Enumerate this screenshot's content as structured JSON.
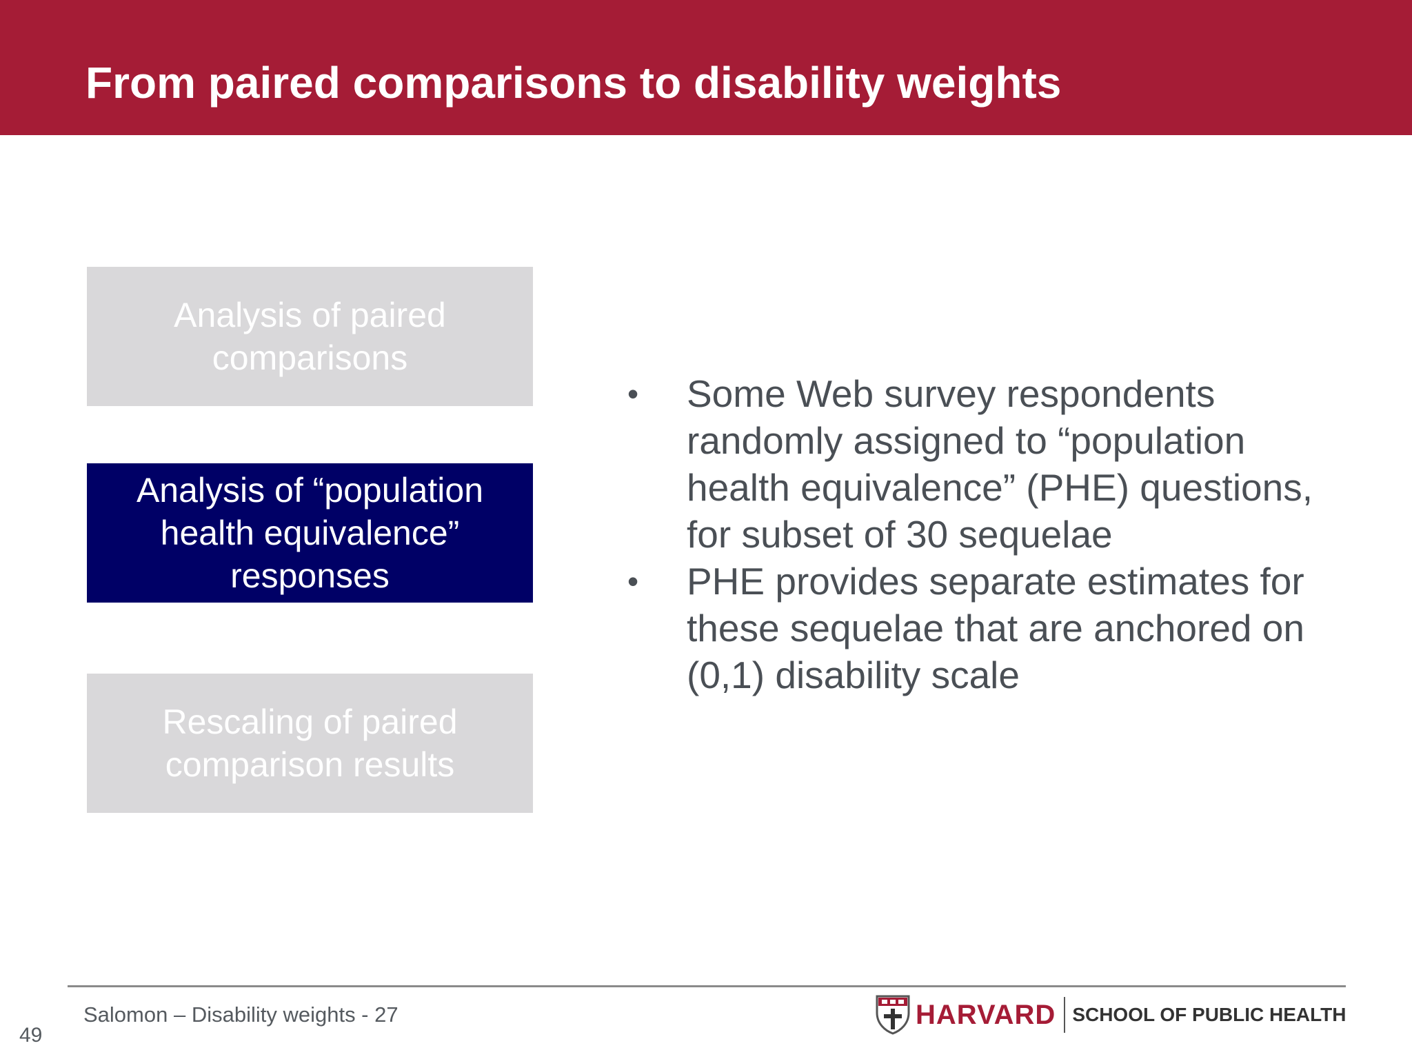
{
  "slide": {
    "title": "From paired comparisons to disability weights"
  },
  "steps": [
    {
      "label": "Analysis of paired comparisons",
      "state": "inactive"
    },
    {
      "label": "Analysis of “population health equivalence” responses",
      "state": "active"
    },
    {
      "label": "Rescaling of paired comparison results",
      "state": "inactive"
    }
  ],
  "bullets": [
    "Some Web survey respondents randomly assigned to “population health equivalence” (PHE) questions, for subset of 30 sequelae",
    "PHE provides separate estimates for these sequelae that are anchored on (0,1) disability scale"
  ],
  "bullet_marker": "•",
  "footer": {
    "text": "Salomon – Disability weights - 27",
    "page_number": "49"
  },
  "logo": {
    "name": "HARVARD",
    "school": "SCHOOL OF PUBLIC HEALTH",
    "icon": "shield-icon"
  },
  "colors": {
    "header": "#a51c36",
    "active_box": "#000066",
    "inactive_box": "#d9d8da",
    "body_text": "#4a4f55"
  }
}
